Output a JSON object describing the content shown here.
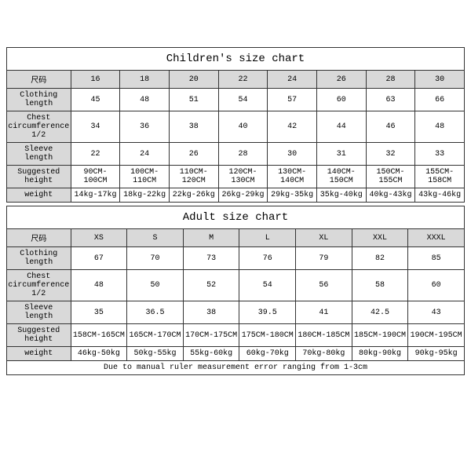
{
  "children": {
    "title": "Children's size chart",
    "columns": [
      "尺码",
      "16",
      "18",
      "20",
      "22",
      "24",
      "26",
      "28",
      "30"
    ],
    "rows": [
      {
        "label": "Clothing length",
        "cells": [
          "45",
          "48",
          "51",
          "54",
          "57",
          "60",
          "63",
          "66"
        ],
        "tiny": false
      },
      {
        "label": "Chest circumference 1/2",
        "cells": [
          "34",
          "36",
          "38",
          "40",
          "42",
          "44",
          "46",
          "48"
        ],
        "tiny": false
      },
      {
        "label": "Sleeve length",
        "cells": [
          "22",
          "24",
          "26",
          "28",
          "30",
          "31",
          "32",
          "33"
        ],
        "tiny": false
      },
      {
        "label": "Suggested height",
        "cells": [
          "90CM-100CM",
          "100CM-110CM",
          "110CM-120CM",
          "120CM-130CM",
          "130CM-140CM",
          "140CM-150CM",
          "150CM-155CM",
          "155CM-158CM"
        ],
        "tiny": true
      },
      {
        "label": "weight",
        "cells": [
          "14kg-17kg",
          "18kg-22kg",
          "22kg-26kg",
          "26kg-29kg",
          "29kg-35kg",
          "35kg-40kg",
          "40kg-43kg",
          "43kg-46kg"
        ],
        "tiny": false
      }
    ],
    "header_bg": "#d9d9d9",
    "rowlabel_bg": "#d9d9d9",
    "border_color": "#333"
  },
  "adult": {
    "title": "Adult size chart",
    "columns": [
      "尺码",
      "XS",
      "S",
      "M",
      "L",
      "XL",
      "XXL",
      "XXXL"
    ],
    "rows": [
      {
        "label": "Clothing length",
        "cells": [
          "67",
          "70",
          "73",
          "76",
          "79",
          "82",
          "85"
        ],
        "tiny": false
      },
      {
        "label": "Chest circumference 1/2",
        "cells": [
          "48",
          "50",
          "52",
          "54",
          "56",
          "58",
          "60"
        ],
        "tiny": false
      },
      {
        "label": "Sleeve length",
        "cells": [
          "35",
          "36.5",
          "38",
          "39.5",
          "41",
          "42.5",
          "43"
        ],
        "tiny": false
      },
      {
        "label": "Suggested height",
        "cells": [
          "158CM-165CM",
          "165CM-170CM",
          "170CM-175CM",
          "175CM-180CM",
          "180CM-185CM",
          "185CM-190CM",
          "190CM-195CM"
        ],
        "tiny": false
      },
      {
        "label": "weight",
        "cells": [
          "46kg-50kg",
          "50kg-55kg",
          "55kg-60kg",
          "60kg-70kg",
          "70kg-80kg",
          "80kg-90kg",
          "90kg-95kg"
        ],
        "tiny": false
      }
    ],
    "note": "Due to manual ruler measurement error ranging from 1-3cm",
    "header_bg": "#d9d9d9",
    "rowlabel_bg": "#d9d9d9",
    "border_color": "#333"
  },
  "layout": {
    "col1_width_pct": 14,
    "title_fontsize": 14,
    "cell_fontsize": 10,
    "tiny_fontsize": 7.5,
    "background_color": "#ffffff"
  }
}
